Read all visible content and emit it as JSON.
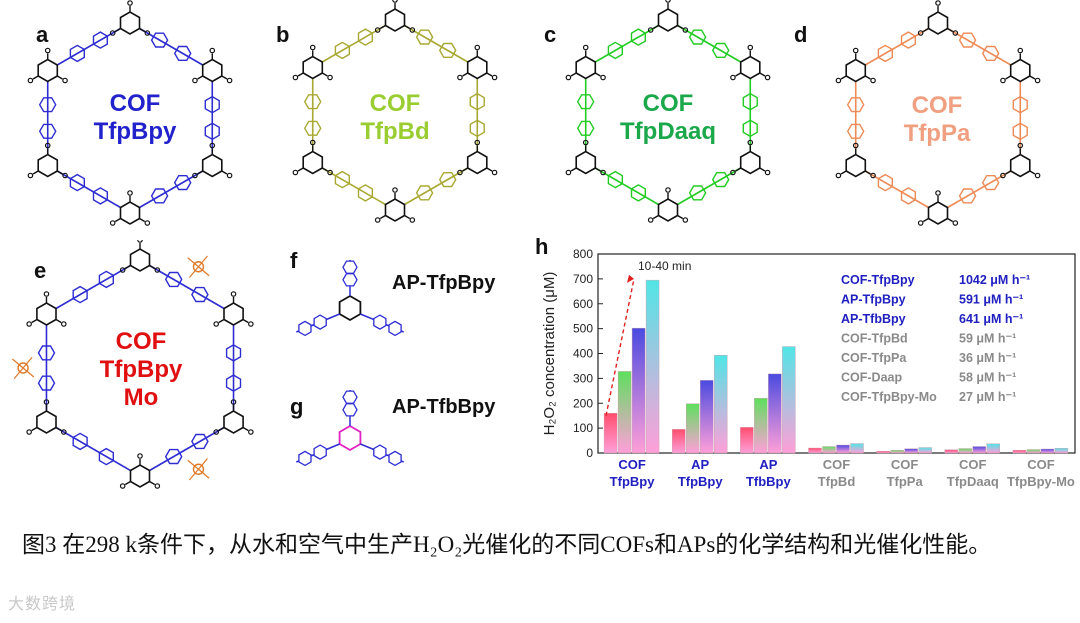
{
  "panels": {
    "a": {
      "label": "a",
      "title1": "COF",
      "title2": "TfpBpy",
      "color": "#2222cc"
    },
    "b": {
      "label": "b",
      "title1": "COF",
      "title2": "TfpBd",
      "color": "#9acd32"
    },
    "c": {
      "label": "c",
      "title1": "COF",
      "title2": "TfpDaaq",
      "color": "#1aa84a"
    },
    "d": {
      "label": "d",
      "title1": "COF",
      "title2": "TfpPa",
      "color": "#f0a080"
    },
    "e": {
      "label": "e",
      "title1": "COF",
      "title2": "TfpBpy",
      "title3": "Mo",
      "color": "#e01010"
    },
    "f": {
      "label": "f",
      "title": "AP-TfpBpy"
    },
    "g": {
      "label": "g",
      "title": "AP-TfbBpy"
    },
    "h": {
      "label": "h"
    }
  },
  "colors": {
    "blue_linker": "#2d2dd2",
    "olive_linker": "#a8a832",
    "green_linker": "#22cc22",
    "orange_linker": "#ee8a55",
    "mo_complex": "#e07a2a",
    "magenta_core": "#e020c0",
    "black_node": "#111111"
  },
  "chart_data": {
    "type": "bar",
    "ylabel": "H₂O₂ concentration (μM)",
    "ylim": [
      0,
      800
    ],
    "yticks": [
      0,
      100,
      200,
      300,
      400,
      500,
      600,
      700,
      800
    ],
    "annotation": "10-40 min",
    "categories": [
      {
        "line1": "COF",
        "line2": "TfpBpy",
        "color": "#2020c0"
      },
      {
        "line1": "AP",
        "line2": "TfpBpy",
        "color": "#2020c0"
      },
      {
        "line1": "AP",
        "line2": "TfbBpy",
        "color": "#2020c0"
      },
      {
        "line1": "COF",
        "line2": "TfpBd",
        "color": "#8a8a8a"
      },
      {
        "line1": "COF",
        "line2": "TfpPa",
        "color": "#8a8a8a"
      },
      {
        "line1": "COF",
        "line2": "TfpDaaq",
        "color": "#8a8a8a"
      },
      {
        "line1": "COF",
        "line2": "TfpBpy-Mo",
        "color": "#8a8a8a"
      }
    ],
    "series_colors": [
      "#ff4d6d",
      "#5de05d",
      "#4a4ae0",
      "#50e6e6"
    ],
    "values": [
      [
        160,
        328,
        502,
        695
      ],
      [
        95,
        198,
        292,
        393
      ],
      [
        103,
        220,
        318,
        428
      ],
      [
        20,
        26,
        32,
        38
      ],
      [
        7,
        11,
        17,
        22
      ],
      [
        13,
        18,
        26,
        37
      ],
      [
        11,
        14,
        16,
        19
      ]
    ],
    "legend": [
      {
        "name": "COF-TfpBpy",
        "rate": "1042 μM h⁻¹",
        "color": "#2020c0"
      },
      {
        "name": "AP-TfpBpy",
        "rate": "591 μM h⁻¹",
        "color": "#2020c0"
      },
      {
        "name": "AP-TfbBpy",
        "rate": "641 μM h⁻¹",
        "color": "#2020c0"
      },
      {
        "name": "COF-TfpBd",
        "rate": "59 μM h⁻¹",
        "color": "#8a8a8a"
      },
      {
        "name": "COF-TfpPa",
        "rate": "36 μM h⁻¹",
        "color": "#8a8a8a"
      },
      {
        "name": "COF-Daap",
        "rate": "58 μM h⁻¹",
        "color": "#8a8a8a"
      },
      {
        "name": "COF-TfpBpy-Mo",
        "rate": "27 μM h⁻¹",
        "color": "#8a8a8a"
      }
    ]
  },
  "caption": {
    "text": "图3  在298 k条件下，从水和空气中生产H₂O₂光催化的不同COFs和APs的化学结构和光催化性能。"
  },
  "watermark": {
    "text": "大数跨境"
  }
}
